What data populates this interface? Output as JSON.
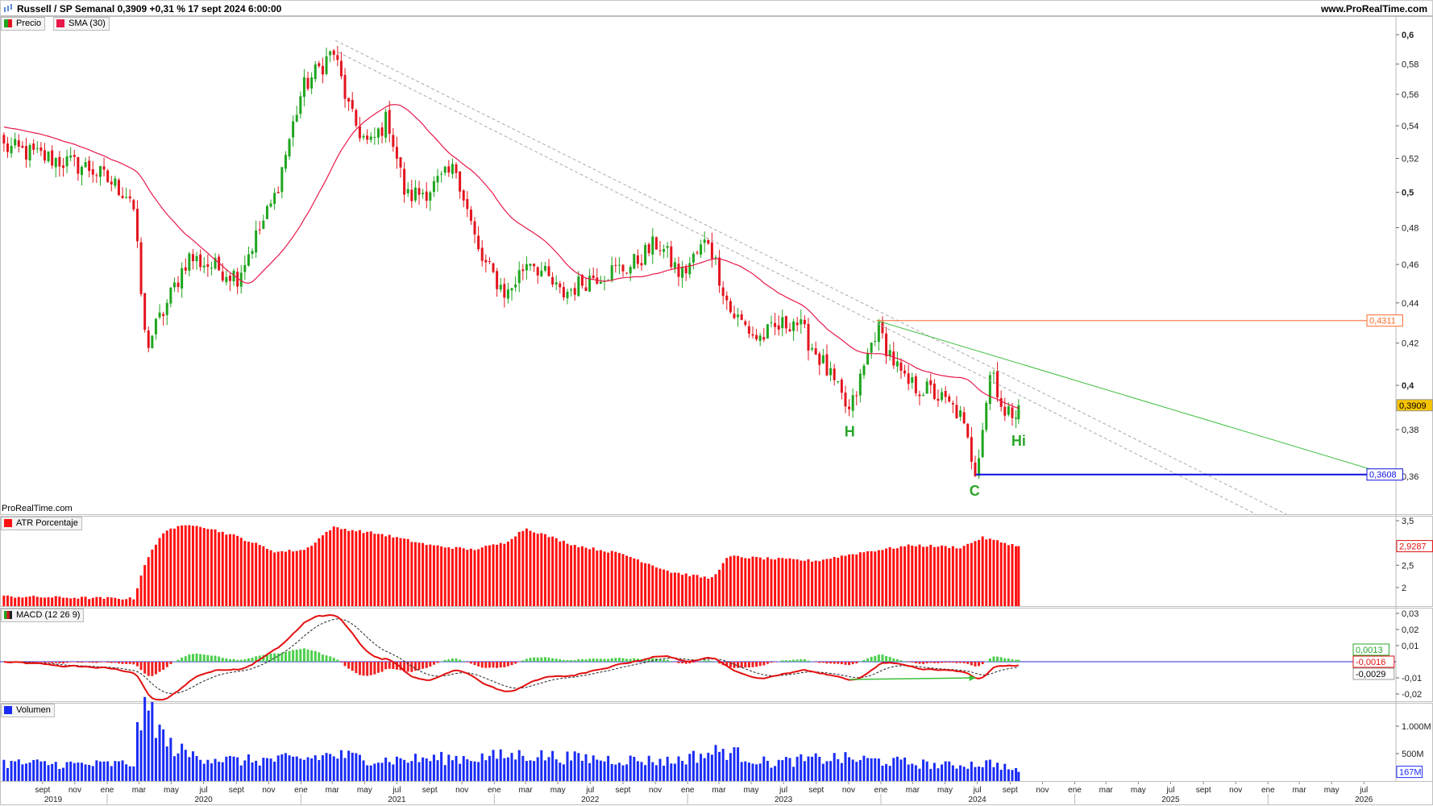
{
  "header": {
    "title": "Russell / SP Semanal 0,3909 +0,31 % 17 sept 2024 6:00:00",
    "site": "www.ProRealTime.com"
  },
  "watermark": "ProRealTime.com",
  "legends": {
    "precio": "Precio",
    "sma": "SMA (30)",
    "atr": "ATR Porcentaje",
    "macd": "MACD (12 26 9)",
    "volumen": "Volumen"
  },
  "colors": {
    "up": "#1fa51f",
    "down": "#e3141e",
    "sma": "#e8194a",
    "atr": "#ff1010",
    "macd": "#e31010",
    "signal": "#222222",
    "volume": "#1a2cf5",
    "support": "#1010e0",
    "resistance": "#ff6a2a",
    "trend": "#3cbf3c"
  },
  "annotations": {
    "h": "H",
    "c": "C",
    "hi": "Hi",
    "resistance_label": "0,4311",
    "support_label": "0,3608",
    "last_price_label": "0,3909",
    "atr_last_label": "2,9287",
    "macd_hist_label": "0,0013",
    "macd_line_label": "-0,0016",
    "macd_signal_label": "-0,0029",
    "volume_last_label": "167M"
  },
  "chart_data": {
    "type": "candlestick",
    "title": "Russell / SP Semanal",
    "last": {
      "close": 0.3909,
      "change_pct": 0.31,
      "date": "2024-09-17"
    },
    "price_axis": {
      "scale": "log",
      "ticks": [
        "0,6",
        "0,58",
        "0,56",
        "0,54",
        "0,52",
        "0,5",
        "0,48",
        "0,46",
        "0,44",
        "0,42",
        "0,4",
        "0,38",
        "0,36"
      ],
      "tick_values": [
        0.6,
        0.58,
        0.56,
        0.54,
        0.52,
        0.5,
        0.48,
        0.46,
        0.44,
        0.42,
        0.4,
        0.38,
        0.36
      ],
      "bold": [
        0.6,
        0.5,
        0.4
      ]
    },
    "price_path": [
      [
        "2019-06-20",
        0.527
      ],
      [
        "2019-12-01",
        0.514
      ],
      [
        "2020-02-18",
        0.497
      ],
      [
        "2020-03-14",
        0.418
      ],
      [
        "2020-04-17",
        0.436
      ],
      [
        "2020-06-01",
        0.464
      ],
      [
        "2020-09-03",
        0.454
      ],
      [
        "2020-11-11",
        0.496
      ],
      [
        "2021-01-03",
        0.563
      ],
      [
        "2021-03-03",
        0.589
      ],
      [
        "2021-04-06",
        0.545
      ],
      [
        "2021-05-10",
        0.527
      ],
      [
        "2021-06-14",
        0.545
      ],
      [
        "2021-07-18",
        0.497
      ],
      [
        "2021-09-01",
        0.502
      ],
      [
        "2021-10-22",
        0.514
      ],
      [
        "2021-12-04",
        0.464
      ],
      [
        "2022-01-25",
        0.444
      ],
      [
        "2022-03-08",
        0.464
      ],
      [
        "2022-05-07",
        0.444
      ],
      [
        "2022-07-07",
        0.454
      ],
      [
        "2022-09-15",
        0.459
      ],
      [
        "2022-11-06",
        0.472
      ],
      [
        "2022-12-19",
        0.454
      ],
      [
        "2023-02-09",
        0.474
      ],
      [
        "2023-03-22",
        0.436
      ],
      [
        "2023-05-13",
        0.422
      ],
      [
        "2023-07-22",
        0.432
      ],
      [
        "2023-09-12",
        0.411
      ],
      [
        "2023-11-03",
        0.387
      ],
      [
        "2023-12-24",
        0.428
      ],
      [
        "2024-02-15",
        0.401
      ],
      [
        "2024-04-06",
        0.397
      ],
      [
        "2024-05-28",
        0.387
      ],
      [
        "2024-06-28",
        0.3625
      ],
      [
        "2024-07-28",
        0.41
      ],
      [
        "2024-08-22",
        0.385
      ],
      [
        "2024-09-17",
        0.3909
      ]
    ],
    "sma_period": 30,
    "lines": [
      {
        "name": "trendline-upper",
        "style": "dashed-gray",
        "from": [
          "2021-03-07",
          0.596
        ],
        "to": [
          "2026-02-10",
          0.344
        ]
      },
      {
        "name": "trendline-lower",
        "style": "dashed-gray",
        "from": [
          "2021-03-12",
          0.588
        ],
        "to": [
          "2025-12-15",
          0.344
        ]
      },
      {
        "name": "trendline-green",
        "style": "green",
        "from": [
          "2023-12-24",
          0.4311
        ],
        "to": [
          "2026-08-28",
          0.36
        ]
      },
      {
        "name": "resistance-line",
        "style": "orange",
        "from": [
          "2023-12-24",
          0.4311
        ],
        "to": [
          "2026-08-28",
          0.4311
        ]
      },
      {
        "name": "support-line",
        "style": "blue",
        "from": [
          "2024-06-28",
          0.3608
        ],
        "to": [
          "2026-08-28",
          0.3608
        ]
      }
    ],
    "labels": [
      {
        "key": "h",
        "date": "2023-11-03",
        "price": 0.377
      },
      {
        "key": "c",
        "date": "2024-06-26",
        "price": 0.352
      },
      {
        "key": "hi",
        "date": "2024-09-17",
        "price": 0.373
      }
    ],
    "atr": {
      "ticks": [
        "3,5",
        "2,5",
        "2"
      ],
      "tick_values": [
        3.5,
        2.5,
        2
      ],
      "path": [
        [
          "2019-06-20",
          1.8
        ],
        [
          "2020-02-20",
          1.75
        ],
        [
          "2020-03-14",
          2.6
        ],
        [
          "2020-04-20",
          3.3
        ],
        [
          "2020-06-15",
          3.42
        ],
        [
          "2020-09-01",
          3.15
        ],
        [
          "2020-11-15",
          2.8
        ],
        [
          "2021-01-10",
          2.85
        ],
        [
          "2021-03-01",
          3.35
        ],
        [
          "2021-06-01",
          3.2
        ],
        [
          "2021-09-01",
          2.95
        ],
        [
          "2021-11-20",
          2.85
        ],
        [
          "2022-01-20",
          3.0
        ],
        [
          "2022-03-01",
          3.33
        ],
        [
          "2022-06-01",
          2.95
        ],
        [
          "2022-09-01",
          2.75
        ],
        [
          "2022-12-01",
          2.35
        ],
        [
          "2023-02-15",
          2.2
        ],
        [
          "2023-03-20",
          2.7
        ],
        [
          "2023-06-01",
          2.65
        ],
        [
          "2023-09-01",
          2.6
        ],
        [
          "2023-12-01",
          2.8
        ],
        [
          "2024-03-01",
          2.95
        ],
        [
          "2024-06-01",
          2.9
        ],
        [
          "2024-07-10",
          3.12
        ],
        [
          "2024-09-17",
          2.9287
        ]
      ]
    },
    "macd": {
      "params": [
        12,
        26,
        9
      ],
      "ticks": [
        "0,03",
        "0,02",
        "0,01",
        "-0,01",
        "-0,02"
      ],
      "tick_values": [
        0.03,
        0.02,
        0.01,
        -0.01,
        -0.02
      ],
      "last": {
        "macd": -0.0016,
        "signal": -0.0029,
        "hist": 0.0013
      },
      "divergence_arrow": {
        "from": [
          "2023-11-03",
          -0.011
        ],
        "to": [
          "2024-06-28",
          -0.01
        ]
      }
    },
    "volume": {
      "ticks": [
        "1.000M",
        "500M"
      ],
      "tick_values": [
        1000,
        500
      ],
      "unit": "M",
      "path": [
        [
          "2019-06-20",
          330
        ],
        [
          "2019-12-01",
          300
        ],
        [
          "2020-02-20",
          320
        ],
        [
          "2020-03-01",
          1100
        ],
        [
          "2020-03-25",
          1280
        ],
        [
          "2020-04-20",
          700
        ],
        [
          "2020-06-01",
          480
        ],
        [
          "2020-09-01",
          370
        ],
        [
          "2021-01-01",
          400
        ],
        [
          "2021-03-01",
          480
        ],
        [
          "2021-06-01",
          380
        ],
        [
          "2021-12-01",
          430
        ],
        [
          "2022-03-01",
          480
        ],
        [
          "2022-06-01",
          420
        ],
        [
          "2022-12-01",
          360
        ],
        [
          "2023-03-10",
          560
        ],
        [
          "2023-06-01",
          330
        ],
        [
          "2023-10-01",
          420
        ],
        [
          "2024-01-01",
          370
        ],
        [
          "2024-05-01",
          280
        ],
        [
          "2024-08-01",
          330
        ],
        [
          "2024-09-17",
          167
        ]
      ]
    },
    "time_axis": {
      "months": [
        [
          "2019-09",
          "sept"
        ],
        [
          "2019-11",
          "nov"
        ],
        [
          "2020-01",
          "ene"
        ],
        [
          "2020-03",
          "mar"
        ],
        [
          "2020-05",
          "may"
        ],
        [
          "2020-07",
          "jul"
        ],
        [
          "2020-09",
          "sept"
        ],
        [
          "2020-11",
          "nov"
        ],
        [
          "2021-01",
          "ene"
        ],
        [
          "2021-03",
          "mar"
        ],
        [
          "2021-05",
          "may"
        ],
        [
          "2021-07",
          "jul"
        ],
        [
          "2021-09",
          "sept"
        ],
        [
          "2021-11",
          "nov"
        ],
        [
          "2022-01",
          "ene"
        ],
        [
          "2022-03",
          "mar"
        ],
        [
          "2022-05",
          "may"
        ],
        [
          "2022-07",
          "jul"
        ],
        [
          "2022-09",
          "sept"
        ],
        [
          "2022-11",
          "nov"
        ],
        [
          "2023-01",
          "ene"
        ],
        [
          "2023-03",
          "mar"
        ],
        [
          "2023-05",
          "may"
        ],
        [
          "2023-07",
          "jul"
        ],
        [
          "2023-09",
          "sept"
        ],
        [
          "2023-11",
          "nov"
        ],
        [
          "2024-01",
          "ene"
        ],
        [
          "2024-03",
          "mar"
        ],
        [
          "2024-05",
          "may"
        ],
        [
          "2024-07",
          "jul"
        ],
        [
          "2024-09",
          "sept"
        ],
        [
          "2024-11",
          "nov"
        ],
        [
          "2025-01",
          "ene"
        ],
        [
          "2025-03",
          "mar"
        ],
        [
          "2025-05",
          "may"
        ],
        [
          "2025-07",
          "jul"
        ],
        [
          "2025-09",
          "sept"
        ],
        [
          "2025-11",
          "nov"
        ],
        [
          "2026-01",
          "ene"
        ],
        [
          "2026-03",
          "mar"
        ],
        [
          "2026-05",
          "may"
        ],
        [
          "2026-07",
          "jul"
        ]
      ],
      "years": [
        "2019",
        "2020",
        "2021",
        "2022",
        "2023",
        "2024",
        "2025",
        "2026"
      ]
    }
  }
}
